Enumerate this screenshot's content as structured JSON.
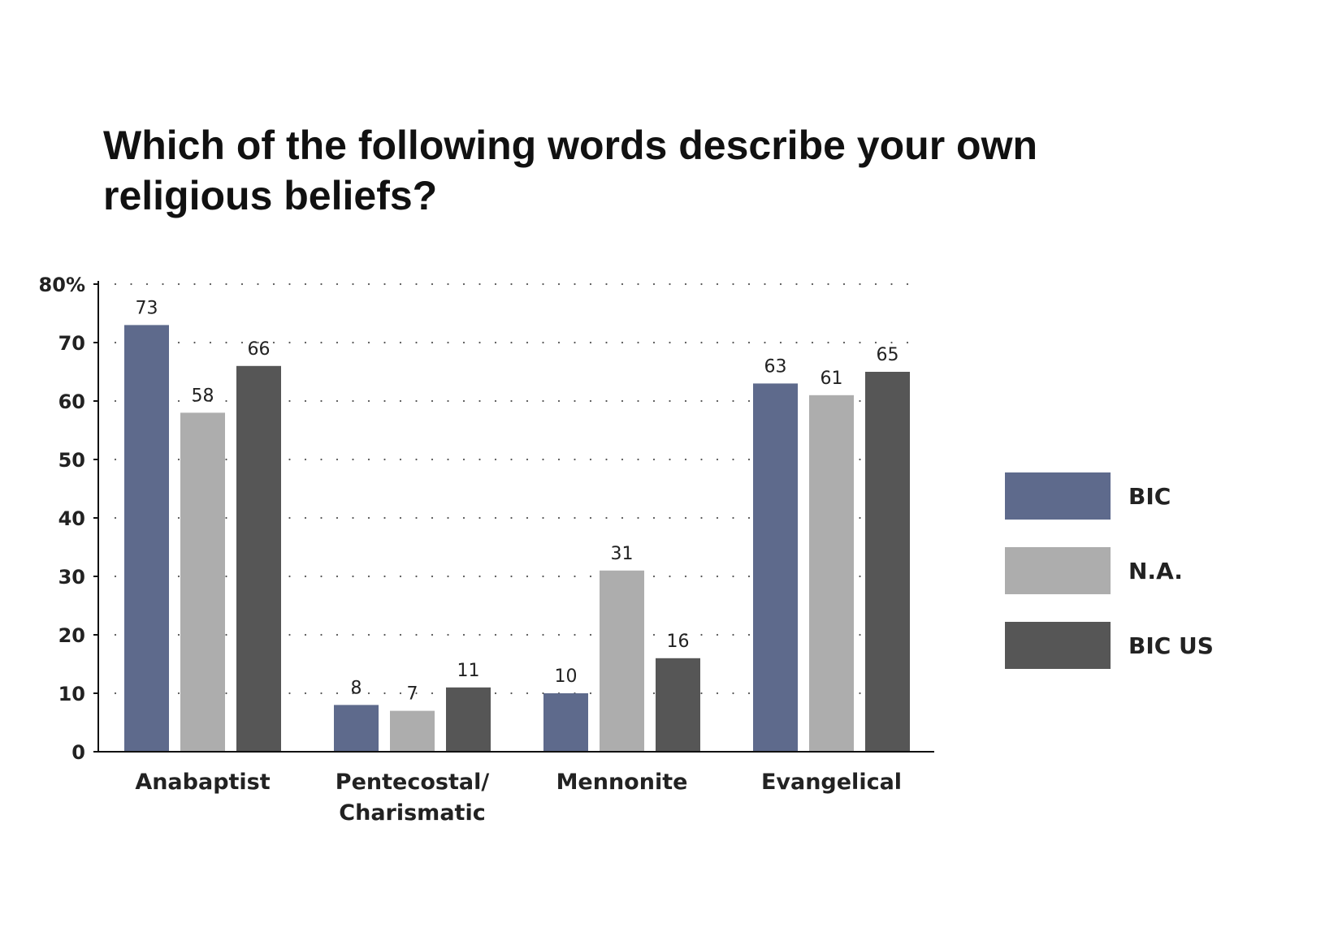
{
  "chart_data": {
    "type": "bar",
    "title": "Which of the following words describe your own religious beliefs?",
    "title_lines": [
      "Which of the following words describe your own",
      "religious beliefs?"
    ],
    "categories": [
      "Anabaptist",
      "Pentecostal/Charismatic",
      "Mennonite",
      "Evangelical"
    ],
    "category_lines": [
      [
        "Anabaptist"
      ],
      [
        "Pentecostal/",
        "Charismatic"
      ],
      [
        "Mennonite"
      ],
      [
        "Evangelical"
      ]
    ],
    "series": [
      {
        "name": "BIC",
        "color": "#5e6a8c",
        "values": [
          73,
          8,
          10,
          63
        ]
      },
      {
        "name": "N.A.",
        "color": "#adadad",
        "values": [
          58,
          7,
          31,
          61
        ]
      },
      {
        "name": "BIC US",
        "color": "#565656",
        "values": [
          66,
          11,
          16,
          65
        ]
      }
    ],
    "ylim": [
      0,
      80
    ],
    "y_ticks": [
      0,
      10,
      20,
      30,
      40,
      50,
      60,
      70,
      80
    ],
    "y_tick_labels": [
      "0",
      "10",
      "20",
      "30",
      "40",
      "50",
      "60",
      "70",
      "80%"
    ],
    "grid": "dotted-horizontal",
    "legend_position": "right",
    "xlabel": "",
    "ylabel": ""
  }
}
